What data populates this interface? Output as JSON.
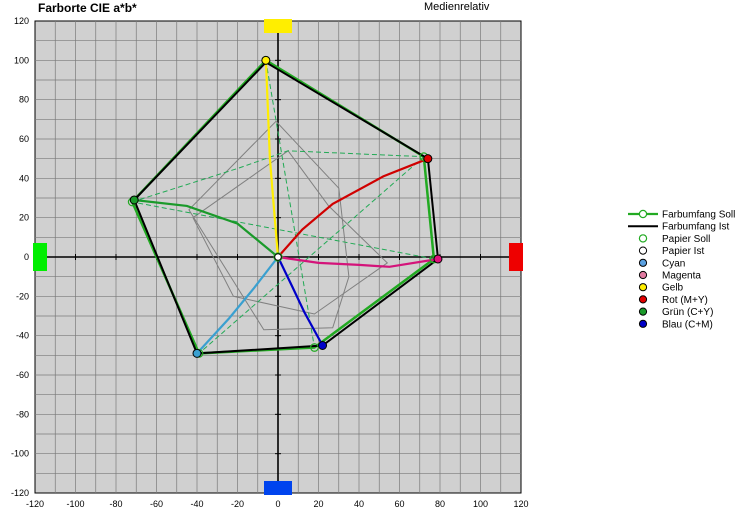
{
  "header": {
    "title": "Farborte CIE a*b*",
    "mode": "Medienrelativ"
  },
  "chart_data": {
    "type": "scatter",
    "title": "Farborte CIE a*b*",
    "xlim": [
      -120,
      120
    ],
    "ylim": [
      -120,
      120
    ],
    "xticks": [
      -120,
      -100,
      -80,
      -60,
      -40,
      -20,
      0,
      20,
      40,
      60,
      80,
      100,
      120
    ],
    "yticks": [
      -120,
      -100,
      -80,
      -60,
      -40,
      -20,
      0,
      20,
      40,
      60,
      80,
      100,
      120
    ],
    "grid": true,
    "legend_position": "right",
    "gamut_soll": [
      [
        -6,
        100
      ],
      [
        72,
        51
      ],
      [
        77,
        -1
      ],
      [
        18,
        -46
      ],
      [
        -39,
        -49
      ],
      [
        -72,
        28
      ]
    ],
    "gamut_ist": [
      [
        -6,
        99
      ],
      [
        74,
        50
      ],
      [
        79,
        -1
      ],
      [
        22,
        -45
      ],
      [
        -40,
        -49
      ],
      [
        -71,
        29
      ]
    ],
    "gamut_soll_diagonals": [
      [
        -6,
        100
      ],
      [
        18,
        -46
      ],
      [
        72,
        51
      ],
      [
        -39,
        -49
      ],
      [
        77,
        -1
      ],
      [
        -72,
        28
      ]
    ],
    "inner_ring_1": [
      [
        -1,
        69
      ],
      [
        30,
        35
      ],
      [
        35,
        -10
      ],
      [
        27,
        -36
      ],
      [
        -7,
        -37
      ],
      [
        -44,
        24
      ]
    ],
    "inner_ring_2": [
      [
        5,
        54
      ],
      [
        25,
        26
      ],
      [
        54,
        -3
      ],
      [
        18,
        -29
      ],
      [
        -22,
        -20
      ],
      [
        -42,
        20
      ]
    ],
    "paper_soll": [
      0,
      0
    ],
    "paper_ist": [
      0,
      0
    ],
    "points": [
      {
        "name": "Gelb",
        "x": -6,
        "y": 100,
        "color": "#ffee00"
      },
      {
        "name": "Rot (M+Y)",
        "x": 74,
        "y": 50,
        "color": "#e00000"
      },
      {
        "name": "Magenta",
        "x": 79,
        "y": -1,
        "color": "#e0107a"
      },
      {
        "name": "Blau (C+M)",
        "x": 22,
        "y": -45,
        "color": "#0000c8"
      },
      {
        "name": "Cyan",
        "x": -40,
        "y": -49,
        "color": "#3aa0d0"
      },
      {
        "name": "Grün (C+Y)",
        "x": -71,
        "y": 29,
        "color": "#1a9a2a"
      }
    ],
    "ramps": [
      {
        "name": "Gelb",
        "color": "#ffee00",
        "points": [
          [
            0,
            0
          ],
          [
            -2,
            25
          ],
          [
            -4,
            50
          ],
          [
            -5,
            75
          ],
          [
            -6,
            100
          ]
        ]
      },
      {
        "name": "Rot (M+Y)",
        "color": "#d00000",
        "points": [
          [
            0,
            0
          ],
          [
            12,
            14
          ],
          [
            27,
            27
          ],
          [
            52,
            41
          ],
          [
            74,
            50
          ]
        ]
      },
      {
        "name": "Magenta",
        "color": "#d4137a",
        "points": [
          [
            0,
            0
          ],
          [
            20,
            -3
          ],
          [
            40,
            -4
          ],
          [
            55,
            -5
          ],
          [
            79,
            -1
          ]
        ]
      },
      {
        "name": "Blau (C+M)",
        "color": "#0000c8",
        "points": [
          [
            0,
            0
          ],
          [
            7,
            -15
          ],
          [
            13,
            -28
          ],
          [
            22,
            -45
          ]
        ]
      },
      {
        "name": "Cyan",
        "color": "#3aa0d0",
        "points": [
          [
            0,
            0
          ],
          [
            -12,
            -16
          ],
          [
            -24,
            -31
          ],
          [
            -40,
            -49
          ]
        ]
      },
      {
        "name": "Grün (C+Y)",
        "color": "#1a9a2a",
        "points": [
          [
            0,
            0
          ],
          [
            -20,
            17
          ],
          [
            -45,
            26
          ],
          [
            -71,
            29
          ]
        ]
      }
    ],
    "edge_markers": [
      {
        "side": "top",
        "color": "#ffee00"
      },
      {
        "side": "bottom",
        "color": "#0044ee"
      },
      {
        "side": "left",
        "color": "#00ee00"
      },
      {
        "side": "right",
        "color": "#ee0000"
      }
    ],
    "legend": [
      {
        "label": "Farbumfang Soll",
        "kind": "line-marker",
        "color": "#22aa22"
      },
      {
        "label": "Farbumfang Ist",
        "kind": "line",
        "color": "#000000"
      },
      {
        "label": "Papier Soll",
        "kind": "open-marker",
        "color": "#22aa22"
      },
      {
        "label": "Papier Ist",
        "kind": "marker",
        "color": "#ffffff"
      },
      {
        "label": "Cyan",
        "kind": "marker",
        "color": "#5aa0e0"
      },
      {
        "label": "Magenta",
        "kind": "marker",
        "color": "#e07aa0"
      },
      {
        "label": "Gelb",
        "kind": "marker",
        "color": "#ffee00"
      },
      {
        "label": "Rot (M+Y)",
        "kind": "marker",
        "color": "#e00000"
      },
      {
        "label": "Grün (C+Y)",
        "kind": "marker",
        "color": "#1a9a2a"
      },
      {
        "label": "Blau (C+M)",
        "kind": "marker",
        "color": "#0000c8"
      }
    ]
  }
}
